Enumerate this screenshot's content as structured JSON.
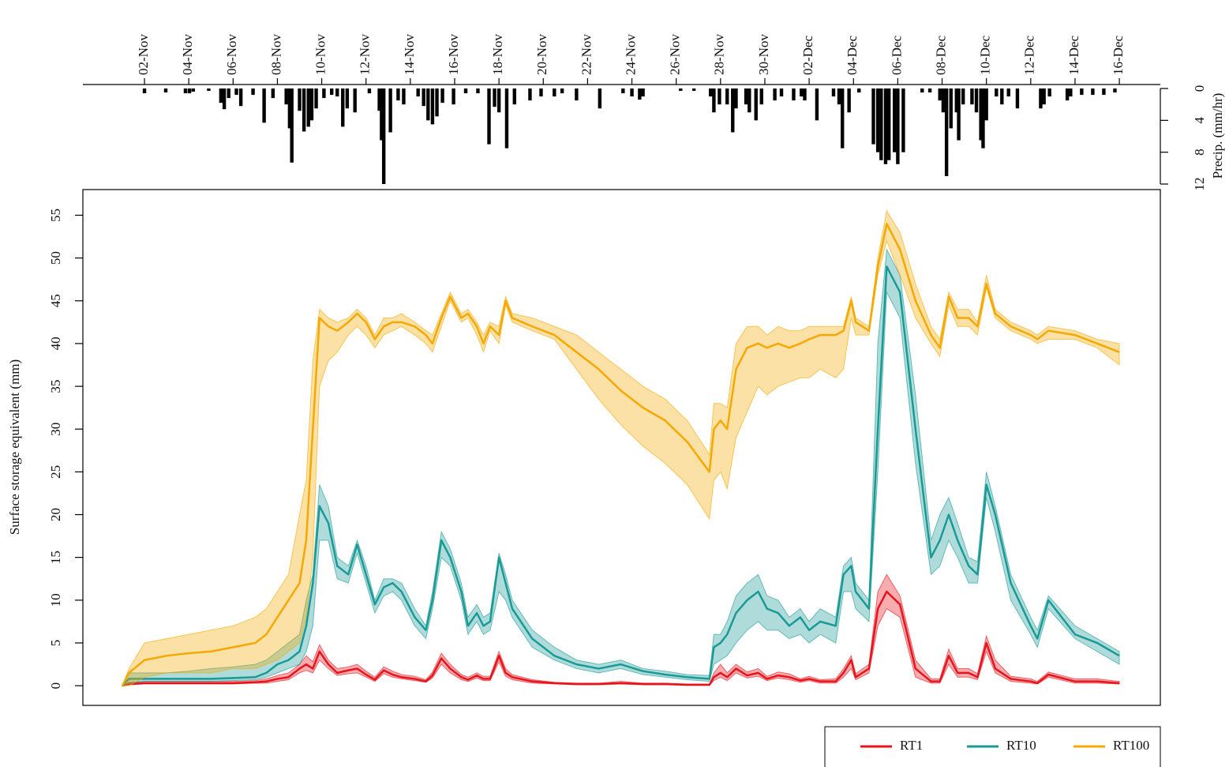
{
  "chart_data": [
    {
      "type": "bar",
      "ylabel": "Precip. (mm/hr)",
      "inverted": true,
      "color": "#000000",
      "grid": true,
      "xlim": [
        -1.78,
        46.85
      ],
      "ylim": [
        -0.5,
        12
      ],
      "xticks": [
        {
          "value": 1,
          "label": "02-Nov"
        },
        {
          "value": 3,
          "label": "04-Nov"
        },
        {
          "value": 5,
          "label": "06-Nov"
        },
        {
          "value": 7,
          "label": "08-Nov"
        },
        {
          "value": 9,
          "label": "10-Nov"
        },
        {
          "value": 11,
          "label": "12-Nov"
        },
        {
          "value": 13,
          "label": "14-Nov"
        },
        {
          "value": 15,
          "label": "16-Nov"
        },
        {
          "value": 17,
          "label": "18-Nov"
        },
        {
          "value": 19,
          "label": "20-Nov"
        },
        {
          "value": 21,
          "label": "22-Nov"
        },
        {
          "value": 23,
          "label": "24-Nov"
        },
        {
          "value": 25,
          "label": "26-Nov"
        },
        {
          "value": 27,
          "label": "28-Nov"
        },
        {
          "value": 29,
          "label": "30-Nov"
        },
        {
          "value": 31,
          "label": "02-Dec"
        },
        {
          "value": 33,
          "label": "04-Dec"
        },
        {
          "value": 35,
          "label": "06-Dec"
        },
        {
          "value": 37,
          "label": "08-Dec"
        },
        {
          "value": 39,
          "label": "10-Dec"
        },
        {
          "value": 41,
          "label": "12-Dec"
        },
        {
          "value": 43,
          "label": "14-Dec"
        },
        {
          "value": 45,
          "label": "16-Dec"
        }
      ],
      "yticks": [
        0,
        4,
        8,
        12
      ],
      "x": [
        1.0,
        1.96,
        2.85,
        3.03,
        3.2,
        3.9,
        4.45,
        4.6,
        4.8,
        5.15,
        5.35,
        5.9,
        6.4,
        6.8,
        7.4,
        7.55,
        7.65,
        8.0,
        8.2,
        8.4,
        8.55,
        8.75,
        9.1,
        9.45,
        9.7,
        9.95,
        10.15,
        10.5,
        11.15,
        11.6,
        11.7,
        11.8,
        12.1,
        12.45,
        12.7,
        13.35,
        13.6,
        13.8,
        14.0,
        14.2,
        14.45,
        14.95,
        15.5,
        16.05,
        16.55,
        16.8,
        17.0,
        17.35,
        17.7,
        18.4,
        18.9,
        19.5,
        19.85,
        20.5,
        21.55,
        22.6,
        23.0,
        23.35,
        23.5,
        25.2,
        25.8,
        26.55,
        26.7,
        26.95,
        27.3,
        27.55,
        27.7,
        28.15,
        28.3,
        28.6,
        28.85,
        29.45,
        29.75,
        30.3,
        30.65,
        30.8,
        31.35,
        32.1,
        32.35,
        32.5,
        32.8,
        33.25,
        33.9,
        34.1,
        34.25,
        34.45,
        34.6,
        34.85,
        35.0,
        35.25,
        36.1,
        36.45,
        36.9,
        37.05,
        37.2,
        37.4,
        37.65,
        37.75,
        37.95,
        38.35,
        38.55,
        38.75,
        38.85,
        39.0,
        39.45,
        39.7,
        40.0,
        40.4,
        41.45,
        41.6,
        41.85,
        42.65,
        42.8,
        43.3,
        43.8,
        44.3,
        44.8
      ],
      "values": [
        0.6,
        0.5,
        0.6,
        0.6,
        0.4,
        0.3,
        1.8,
        2.6,
        1.2,
        0.8,
        2.2,
        0.8,
        4.3,
        1.2,
        2,
        5,
        9.3,
        2.8,
        5.4,
        4.8,
        4,
        2.5,
        1.2,
        0.8,
        1,
        4.8,
        2.5,
        3,
        0.6,
        2.8,
        6.5,
        12,
        5.5,
        1.5,
        2,
        1,
        2.2,
        4,
        4.5,
        3.5,
        1.8,
        2,
        0.6,
        0.6,
        7,
        2.3,
        3,
        7.5,
        2,
        1.5,
        1,
        1,
        0.6,
        1.5,
        2.5,
        0.6,
        1,
        1.4,
        1,
        0.3,
        0.3,
        1,
        3,
        2,
        2,
        5.5,
        2.5,
        2,
        3,
        4,
        2,
        1.5,
        1,
        1.5,
        1,
        1.5,
        4,
        1,
        2,
        7.5,
        3,
        0.5,
        7,
        8,
        9,
        9.5,
        9,
        8,
        9.5,
        8,
        0.5,
        0.5,
        1.5,
        3,
        11,
        5,
        3,
        6.5,
        2,
        2,
        3,
        6.5,
        7.5,
        4,
        1,
        2,
        1,
        2.5,
        2.5,
        2,
        1,
        1.5,
        1,
        0.8,
        0.8,
        0.8,
        0.5
      ]
    },
    {
      "type": "line",
      "ylabel": "Surface storage equivalent (mm)",
      "grid": true,
      "legend": "bottom right",
      "xlim": [
        -1.78,
        46.85
      ],
      "ylim": [
        -2.3,
        58
      ],
      "yticks": [
        0,
        5,
        10,
        15,
        20,
        25,
        30,
        35,
        40,
        45,
        50,
        55
      ],
      "x": [
        0,
        0.3,
        1,
        2,
        3,
        4,
        5,
        6,
        6.5,
        7,
        7.5,
        8,
        8.3,
        8.6,
        8.9,
        9.3,
        9.7,
        10.2,
        10.6,
        11.0,
        11.4,
        11.8,
        12.2,
        12.6,
        13.2,
        13.7,
        14.0,
        14.4,
        14.8,
        15.3,
        15.6,
        16.0,
        16.3,
        16.6,
        17.0,
        17.3,
        17.6,
        18.5,
        19.5,
        20.5,
        21.5,
        22.5,
        23.5,
        24.5,
        25.5,
        26.5,
        26.7,
        27.0,
        27.3,
        27.7,
        28.2,
        28.7,
        29.1,
        29.6,
        30.1,
        30.6,
        31.0,
        31.5,
        32.2,
        32.55,
        32.9,
        33.1,
        33.7,
        34.1,
        34.5,
        35.1,
        35.8,
        36.5,
        36.9,
        37.3,
        37.7,
        38.2,
        38.6,
        39.0,
        39.4,
        40.1,
        41.0,
        41.3,
        41.8,
        43.0,
        44.0,
        45.0
      ],
      "series": [
        {
          "name": "RT1",
          "color": "#e8141c",
          "values": [
            0,
            0.2,
            0.3,
            0.3,
            0.3,
            0.3,
            0.3,
            0.4,
            0.5,
            0.8,
            1,
            2,
            2.5,
            2,
            4,
            2.5,
            1.5,
            1.8,
            2,
            1.3,
            0.7,
            1.8,
            1.3,
            1,
            0.8,
            0.5,
            1.2,
            3.2,
            2,
            1,
            0.7,
            1.2,
            0.8,
            0.8,
            3.5,
            1.5,
            1,
            0.5,
            0.3,
            0.2,
            0.2,
            0.3,
            0.2,
            0.2,
            0.1,
            0.1,
            1,
            1.5,
            1,
            2,
            1.2,
            1.5,
            0.8,
            1.2,
            1,
            0.6,
            0.8,
            0.5,
            0.5,
            1.5,
            3,
            1,
            2,
            9,
            11,
            9.5,
            2,
            0.5,
            0.5,
            3.5,
            1.5,
            1.5,
            1,
            5,
            2,
            0.8,
            0.5,
            0.3,
            1.3,
            0.5,
            0.5,
            0.3
          ],
          "lower": [
            0,
            0.1,
            0.2,
            0.2,
            0.2,
            0.2,
            0.2,
            0.3,
            0.3,
            0.5,
            0.7,
            1.5,
            1.8,
            1.5,
            3,
            2,
            1.2,
            1.4,
            1.5,
            1,
            0.5,
            1.4,
            1,
            0.8,
            0.6,
            0.4,
            0.9,
            2.5,
            1.5,
            0.7,
            0.5,
            0.9,
            0.6,
            0.6,
            2.8,
            1.1,
            0.7,
            0.3,
            0.2,
            0.1,
            0.1,
            0.2,
            0.1,
            0.1,
            0.05,
            0.05,
            0.6,
            1,
            0.6,
            1.5,
            0.9,
            1.1,
            0.6,
            0.9,
            0.7,
            0.4,
            0.6,
            0.3,
            0.3,
            1,
            2,
            0.7,
            1.5,
            7,
            9,
            8,
            1,
            0.3,
            0.3,
            2.5,
            1,
            1,
            0.7,
            4,
            1.5,
            0.5,
            0.3,
            0.2,
            1,
            0.3,
            0.3,
            0.2
          ],
          "upper": [
            0,
            0.4,
            0.5,
            0.5,
            0.5,
            0.5,
            0.5,
            0.6,
            0.8,
            1.2,
            1.5,
            2.5,
            3.5,
            2.8,
            4.8,
            3,
            2,
            2.2,
            2.5,
            1.7,
            1,
            2.2,
            1.7,
            1.3,
            1.1,
            0.7,
            1.6,
            3.8,
            2.5,
            1.3,
            1,
            1.5,
            1.1,
            1.1,
            4,
            2,
            1.3,
            0.7,
            0.4,
            0.3,
            0.3,
            0.5,
            0.3,
            0.3,
            0.2,
            0.2,
            1.5,
            2.5,
            1.5,
            2.5,
            1.6,
            2,
            1.1,
            1.6,
            1.4,
            0.8,
            1.1,
            0.7,
            0.8,
            2,
            3.5,
            1.4,
            2.5,
            11,
            13,
            10.5,
            3,
            0.8,
            0.8,
            4.3,
            2,
            2,
            1.4,
            5.8,
            3,
            1.1,
            0.8,
            0.5,
            1.6,
            0.8,
            0.8,
            0.5
          ]
        },
        {
          "name": "RT10",
          "color": "#1a9a96",
          "values": [
            0,
            0.8,
            0.8,
            0.8,
            0.8,
            0.8,
            0.9,
            1,
            1.5,
            2.5,
            3,
            4,
            7,
            12,
            21,
            19,
            14,
            13,
            16.5,
            13,
            9.5,
            11.5,
            12,
            11,
            8,
            6.5,
            10,
            17,
            15,
            11,
            7,
            8.5,
            7,
            7.5,
            15,
            12,
            9,
            5.5,
            3.5,
            2.5,
            2,
            2.5,
            1.7,
            1.3,
            1,
            0.8,
            4.5,
            5,
            6,
            8.5,
            10,
            11,
            9,
            8.5,
            7,
            8,
            6.5,
            7.5,
            7,
            13,
            14,
            11,
            9,
            30,
            49,
            46,
            30,
            15,
            17,
            20,
            17,
            14,
            13,
            23.5,
            20,
            12,
            7,
            5.5,
            10,
            6,
            5,
            3.5
          ],
          "lower": [
            0,
            0.3,
            0.5,
            0.5,
            0.5,
            0.5,
            0.6,
            0.7,
            1,
            1.5,
            2,
            2.5,
            4,
            7,
            17,
            17,
            12.5,
            12,
            15.5,
            12,
            8.5,
            10.5,
            11,
            10,
            7,
            5.5,
            9,
            15,
            14,
            10,
            6,
            7.5,
            6,
            6.5,
            11,
            10,
            8,
            4.5,
            3,
            2,
            1.5,
            2,
            1.3,
            1,
            0.7,
            0.5,
            2.5,
            3,
            3.5,
            5,
            6.5,
            7.5,
            6.5,
            6.5,
            5.5,
            6,
            5,
            6,
            5,
            11,
            11,
            9,
            7.5,
            25,
            46,
            43,
            26,
            13,
            14,
            17,
            15,
            12,
            12,
            22,
            18,
            10,
            6,
            4.5,
            9,
            5.5,
            4,
            2.5
          ],
          "upper": [
            0,
            1.5,
            1.5,
            1.5,
            1.7,
            2,
            2.2,
            2.5,
            3,
            4,
            5,
            6,
            10,
            13,
            23.5,
            21,
            15,
            14,
            17,
            14,
            10,
            12.5,
            12.5,
            12,
            9,
            7,
            11,
            18,
            16,
            12,
            8,
            9.5,
            8,
            8.5,
            15.5,
            13,
            10,
            6.5,
            4.5,
            3,
            2.5,
            3,
            2,
            1.7,
            1.3,
            1.2,
            6,
            6,
            7.5,
            10.5,
            12,
            13,
            10.5,
            10,
            8,
            9,
            7.5,
            9,
            8,
            14,
            15,
            12,
            10,
            40,
            51,
            48,
            34,
            17,
            20,
            22,
            19,
            15,
            14.5,
            25,
            21,
            13,
            8,
            6.5,
            10.5,
            7,
            5.5,
            4
          ]
        },
        {
          "name": "RT100",
          "color": "#f5a800",
          "values": [
            0,
            1.5,
            3,
            3.5,
            3.8,
            4,
            4.5,
            5,
            6,
            8,
            10,
            12,
            17,
            30,
            43,
            42,
            41.5,
            42.5,
            43.5,
            42.5,
            40.5,
            42,
            42.5,
            42.5,
            42,
            41,
            40,
            43,
            45.5,
            43,
            43.5,
            42,
            40,
            42,
            41,
            45,
            43,
            42,
            41,
            39,
            37,
            34.5,
            32.5,
            31,
            28.5,
            25,
            30,
            31,
            30,
            37,
            39.5,
            40,
            39.5,
            40,
            39.5,
            40,
            40.5,
            41,
            41,
            41.5,
            45,
            42.5,
            41.5,
            49,
            54,
            51,
            45,
            41,
            39.5,
            45.5,
            43,
            43,
            42,
            47,
            43.5,
            42,
            41,
            40.5,
            41.5,
            41,
            40,
            39
          ],
          "lower": [
            0,
            0,
            1,
            1.5,
            1.5,
            1.5,
            2,
            2,
            2.5,
            3,
            4,
            5,
            8,
            15,
            35,
            38,
            39,
            41,
            42,
            41,
            39.5,
            41,
            41.5,
            42,
            41,
            40,
            39,
            42,
            45,
            42.5,
            43,
            41,
            39,
            41.5,
            40,
            44.5,
            42.5,
            41.5,
            40.5,
            37,
            33.5,
            30.5,
            28,
            26,
            23.5,
            19.5,
            24,
            25,
            23,
            29,
            32,
            35,
            34,
            35,
            35.5,
            36,
            36,
            37,
            36,
            37,
            43,
            41,
            41,
            48,
            52,
            48,
            43,
            40,
            38.5,
            44.5,
            42,
            42,
            41,
            46.5,
            43,
            41.5,
            40.5,
            40,
            40.5,
            40.5,
            39.5,
            37.5
          ],
          "upper": [
            0,
            2,
            5,
            5.5,
            6,
            6.5,
            7,
            8,
            9,
            11,
            13,
            20,
            24,
            38,
            44,
            43,
            42.5,
            43,
            44,
            43,
            41,
            43,
            43,
            43.5,
            42.5,
            41.5,
            41,
            43.5,
            46,
            43.5,
            44,
            42.5,
            41,
            42.5,
            42,
            45.5,
            43.5,
            43,
            42,
            41,
            39,
            37,
            35,
            33.5,
            31,
            27,
            33,
            33,
            32.5,
            40,
            42,
            42,
            41,
            42,
            41.5,
            41.5,
            42,
            42,
            42,
            42,
            45.5,
            43,
            42,
            50,
            55.5,
            53,
            47,
            42,
            40.5,
            46,
            44,
            44,
            42.5,
            48,
            44,
            42.5,
            41.5,
            41,
            42,
            41.5,
            40.5,
            40
          ]
        }
      ]
    }
  ]
}
